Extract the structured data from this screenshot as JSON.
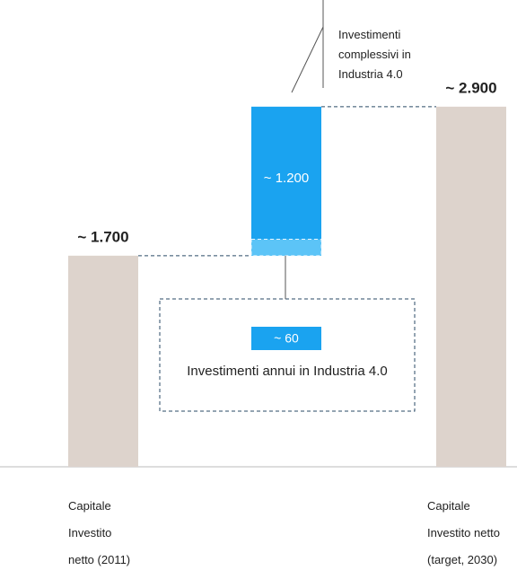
{
  "chart_data": {
    "type": "waterfall",
    "categories": [
      "Capitale\nInvestito\nnetto (2011)",
      null,
      "Capitale\nInvestito netto\n(target, 2030)"
    ],
    "measures": [
      "absolute",
      "relative",
      "total"
    ],
    "values": [
      1700,
      1200,
      2900
    ],
    "value_labels": [
      "~ 1.700",
      "~ 1.200",
      "~ 2.900"
    ],
    "colors": [
      "#ddd3cc",
      "#1aa3f0",
      "#ddd3cc"
    ],
    "ylim": [
      0,
      3000
    ],
    "annotation": "Investimenti\ncomplessivi in\nIndustria 4.0",
    "annual": {
      "value": 60,
      "value_label": "~ 60",
      "label": "Investimenti annui in Industria 4.0",
      "color": "#5cc4f7"
    }
  }
}
